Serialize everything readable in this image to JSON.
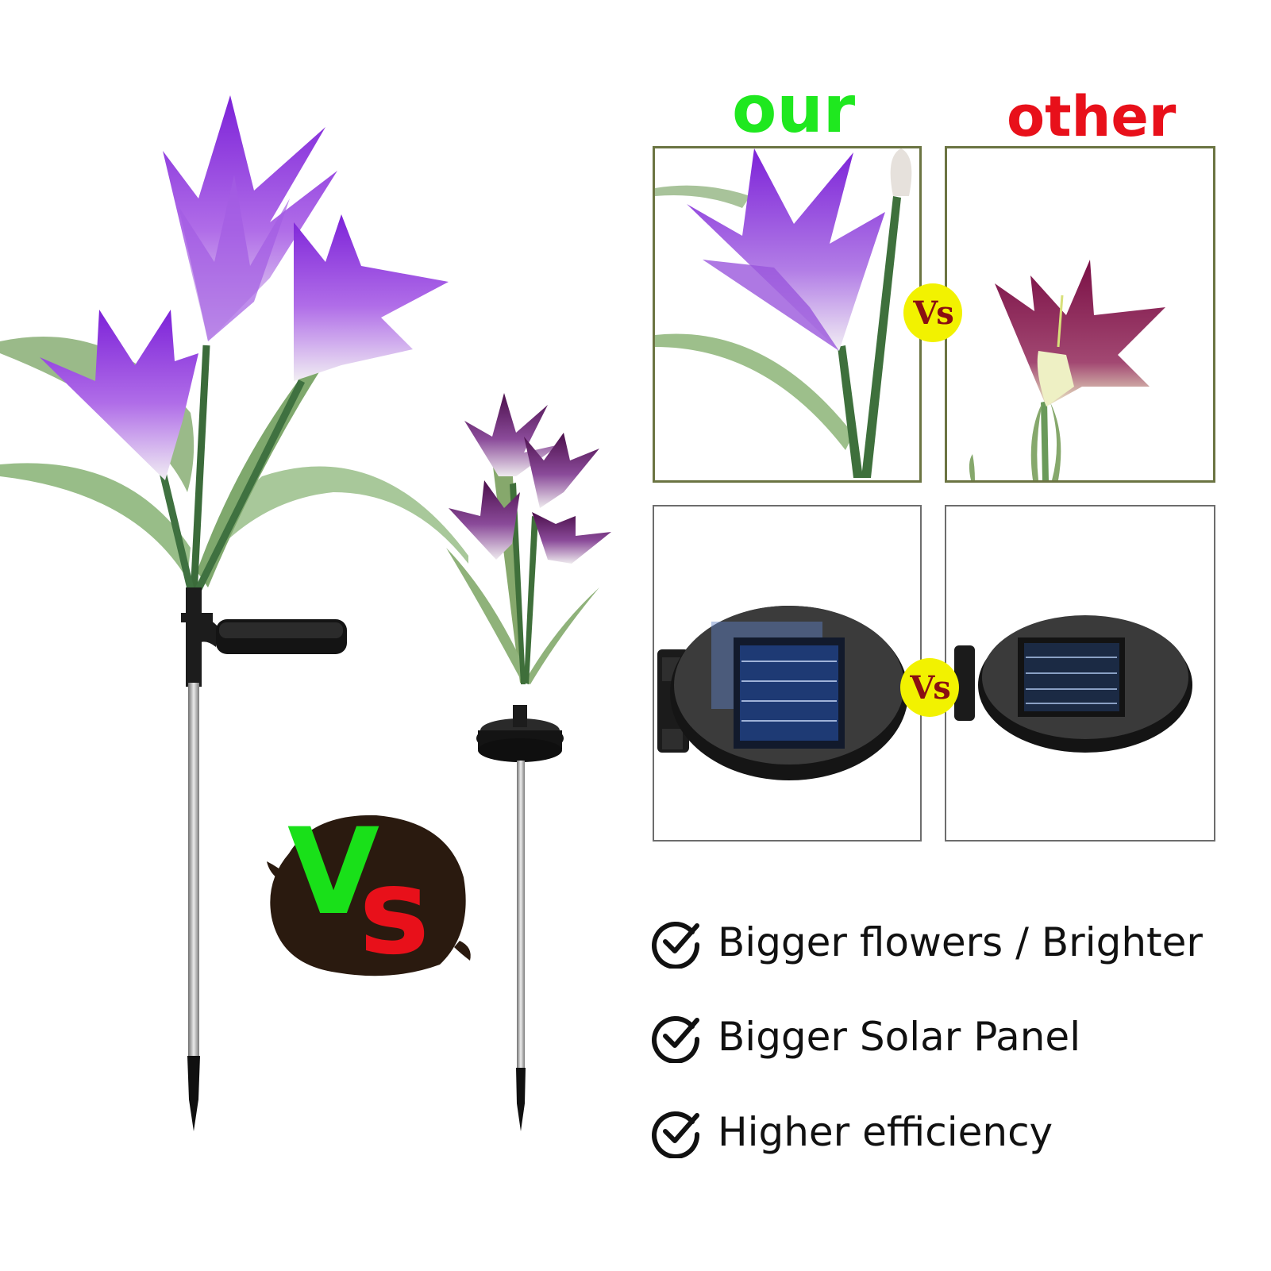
{
  "headings": {
    "ours": "our",
    "other": "other"
  },
  "badges": {
    "small_vs": "Vs",
    "big_vs_v": "V",
    "big_vs_s": "s"
  },
  "features": [
    {
      "text": "Bigger flowers / Brighter",
      "icon": "check-circle-icon"
    },
    {
      "text": "Bigger Solar Panel",
      "icon": "check-circle-icon"
    },
    {
      "text": "Higher efficiency",
      "icon": "check-circle-icon"
    }
  ],
  "colors": {
    "ours": "#1fe81f",
    "other": "#e8101a",
    "vs_badge": "#f2f200",
    "vs_text": "#8a0f12",
    "purple_lily": "#9b3fd6",
    "magenta_lily": "#8c1b5a"
  }
}
